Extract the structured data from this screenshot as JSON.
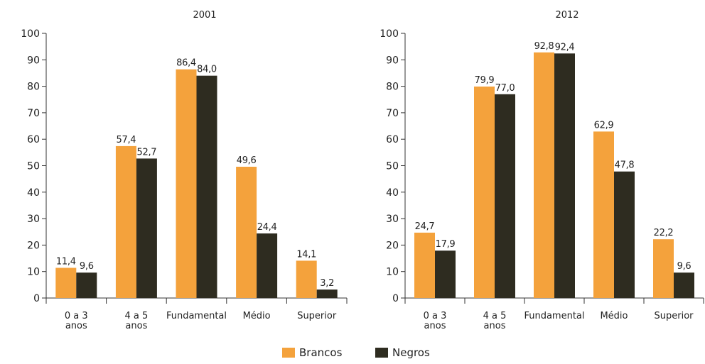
{
  "colors": {
    "brancos": "#F4A23C",
    "negros": "#2E2C20",
    "axis": "#333333"
  },
  "legend": {
    "brancos": "Brancos",
    "negros": "Negros"
  },
  "chart_data": [
    {
      "type": "bar",
      "title": "2001",
      "categories": [
        [
          "0 a 3",
          "anos"
        ],
        [
          "4 a 5",
          "anos"
        ],
        [
          "Fundamental"
        ],
        [
          "Médio"
        ],
        [
          "Superior"
        ]
      ],
      "series": [
        {
          "name": "Brancos",
          "values": [
            11.4,
            57.4,
            86.4,
            49.6,
            14.1
          ],
          "labels": [
            "11,4",
            "57,4",
            "86,4",
            "49,6",
            "14,1"
          ]
        },
        {
          "name": "Negros",
          "values": [
            9.6,
            52.7,
            84.0,
            24.4,
            3.2
          ],
          "labels": [
            "9,6",
            "52,7",
            "84,0",
            "24,4",
            "3,2"
          ]
        }
      ],
      "ylim": [
        0,
        100
      ],
      "yticks": [
        0,
        10,
        20,
        30,
        40,
        50,
        60,
        70,
        80,
        90,
        100
      ],
      "grid": false,
      "legend_position": "bottom"
    },
    {
      "type": "bar",
      "title": "2012",
      "categories": [
        [
          "0 a 3",
          "anos"
        ],
        [
          "4 a 5",
          "anos"
        ],
        [
          "Fundamental"
        ],
        [
          "Médio"
        ],
        [
          "Superior"
        ]
      ],
      "series": [
        {
          "name": "Brancos",
          "values": [
            24.7,
            79.9,
            92.8,
            62.9,
            22.2
          ],
          "labels": [
            "24,7",
            "79,9",
            "92,8",
            "62,9",
            "22,2"
          ]
        },
        {
          "name": "Negros",
          "values": [
            17.9,
            77.0,
            92.4,
            47.8,
            9.6
          ],
          "labels": [
            "17,9",
            "77,0",
            "92,4",
            "47,8",
            "9,6"
          ]
        }
      ],
      "ylim": [
        0,
        100
      ],
      "yticks": [
        0,
        10,
        20,
        30,
        40,
        50,
        60,
        70,
        80,
        90,
        100
      ],
      "grid": false,
      "legend_position": "bottom"
    }
  ]
}
